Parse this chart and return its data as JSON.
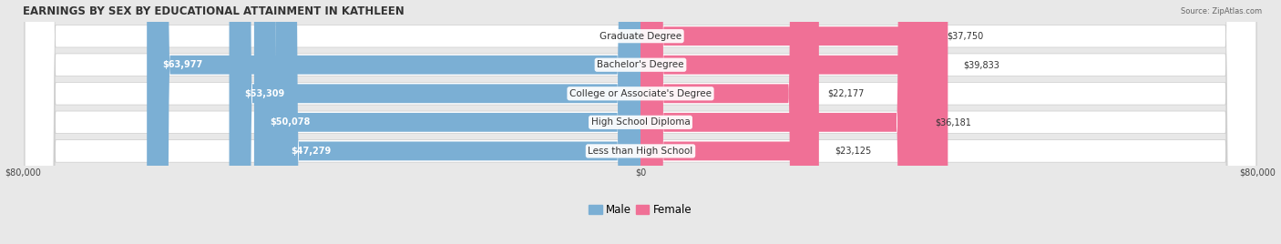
{
  "title": "EARNINGS BY SEX BY EDUCATIONAL ATTAINMENT IN KATHLEEN",
  "source": "Source: ZipAtlas.com",
  "categories": [
    "Less than High School",
    "High School Diploma",
    "College or Associate's Degree",
    "Bachelor's Degree",
    "Graduate Degree"
  ],
  "male_values": [
    47279,
    50078,
    53309,
    63977,
    0
  ],
  "female_values": [
    23125,
    36181,
    22177,
    39833,
    37750
  ],
  "male_color": "#7bafd4",
  "female_color": "#f07096",
  "male_label": "Male",
  "female_label": "Female",
  "x_max": 80000,
  "background_color": "#e8e8e8",
  "row_bg_color": "#ffffff",
  "title_fontsize": 8.5,
  "label_fontsize": 7.5,
  "value_fontsize": 7.0,
  "legend_fontsize": 8.5
}
